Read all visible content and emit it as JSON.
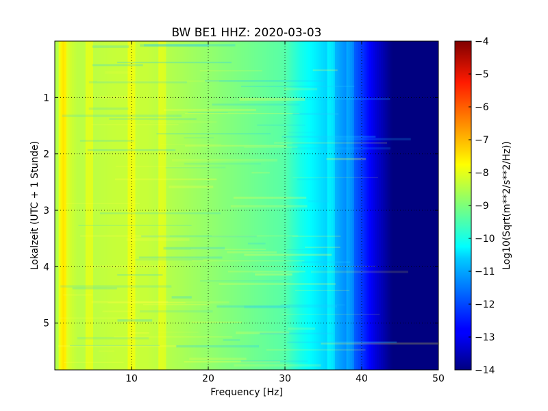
{
  "chart_data": {
    "type": "heatmap",
    "title": "BW BE1 HHZ: 2020-03-03",
    "xlabel": "Frequency [Hz]",
    "ylabel": "Lokalzeit (UTC + 1 Stunde)",
    "colorbar_label": "Log10(Sqrt(m**2/s**2/Hz))",
    "xlim": [
      0,
      50
    ],
    "ylim": [
      5.83,
      0
    ],
    "y_inverted": true,
    "x_ticks": [
      10,
      20,
      30,
      40,
      50
    ],
    "y_ticks": [
      1,
      2,
      3,
      4,
      5
    ],
    "colorbar_range": [
      -14,
      -4
    ],
    "colorbar_ticks": [
      -4,
      -5,
      -6,
      -7,
      -8,
      -9,
      -10,
      -11,
      -12,
      -13,
      -14
    ],
    "colormap": "jet",
    "grid": true,
    "spectrum_profile": {
      "frequency_hz": [
        0.5,
        1,
        2,
        3,
        5,
        8,
        10,
        12,
        15,
        20,
        25,
        30,
        32,
        34,
        36,
        38,
        40,
        42,
        44,
        50
      ],
      "log10_amplitude": [
        -8.5,
        -7.8,
        -8.2,
        -8.4,
        -8.4,
        -8.3,
        -8.3,
        -8.3,
        -8.5,
        -8.8,
        -9.1,
        -9.4,
        -10.0,
        -10.4,
        -10.8,
        -11.4,
        -12.2,
        -13.2,
        -14.0,
        -14.0
      ]
    },
    "strong_lines_hz": [
      1,
      4.5,
      10,
      14,
      36,
      38.5
    ]
  }
}
